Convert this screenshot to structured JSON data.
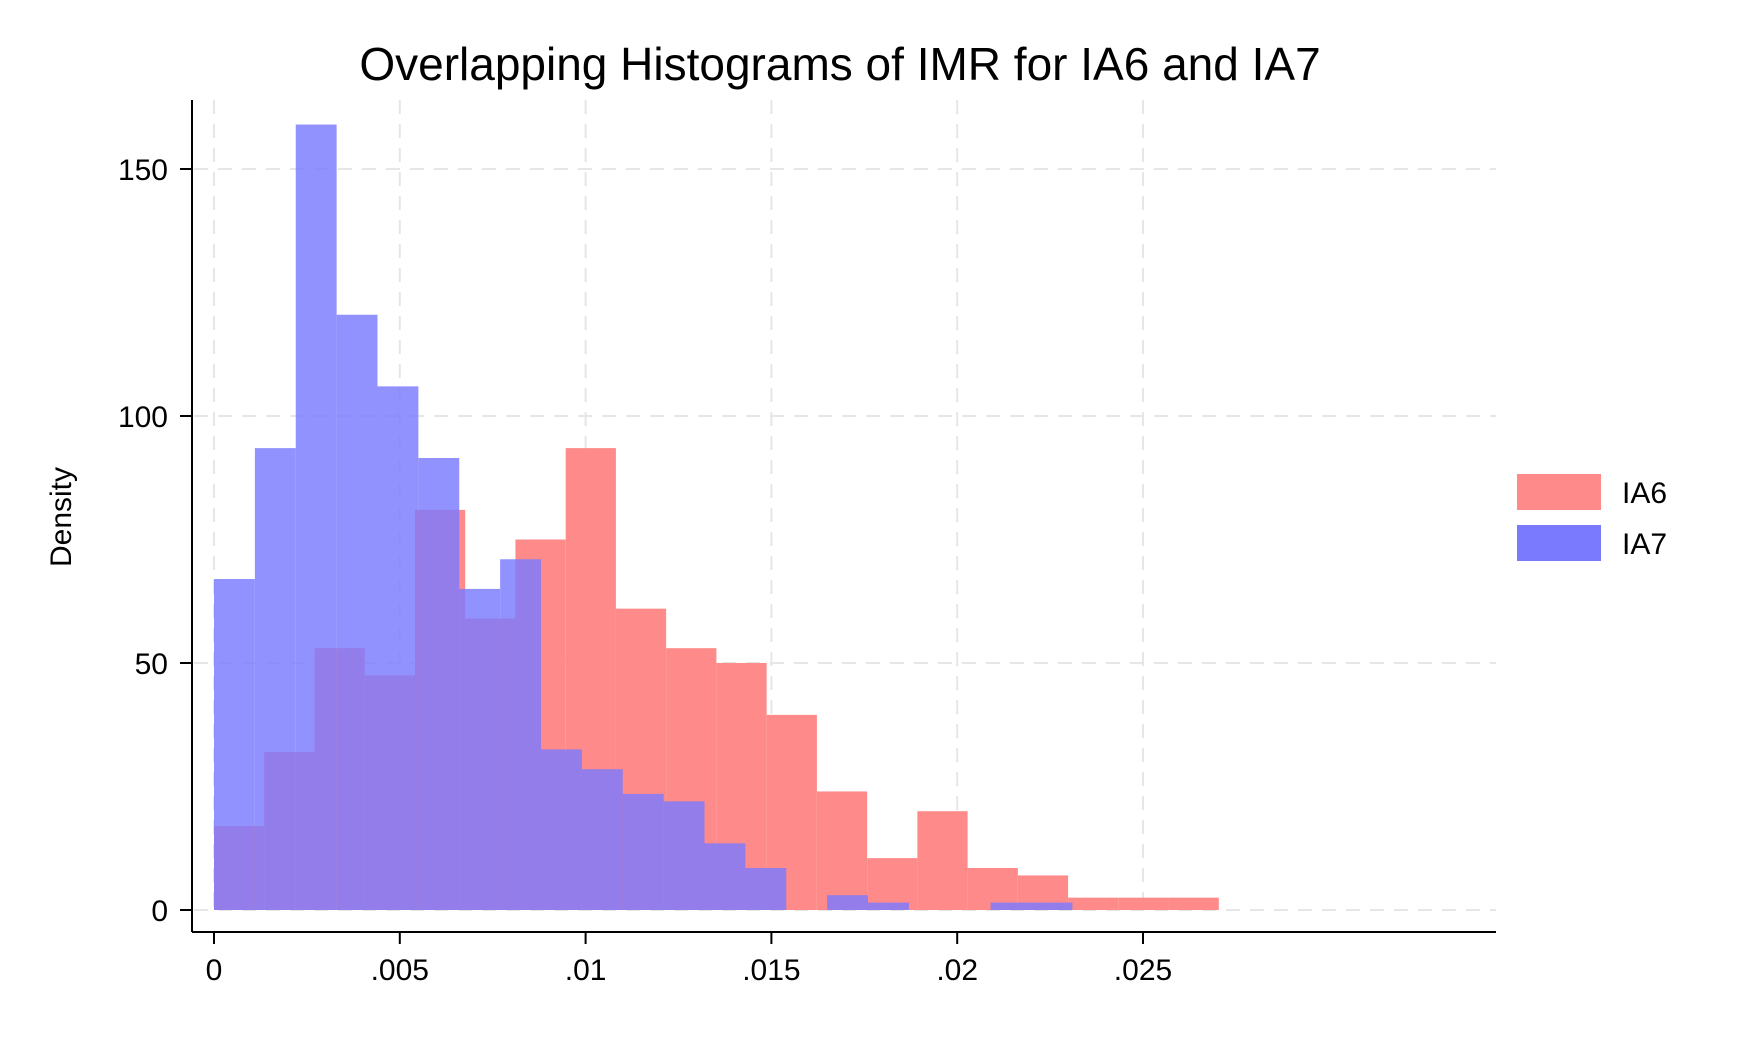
{
  "chart_data": {
    "type": "bar",
    "title": "Overlapping Histograms of IMR for IA6 and IA7",
    "xlabel": "",
    "ylabel": "Density",
    "xlim": [
      0,
      0.028
    ],
    "ylim": [
      0,
      160
    ],
    "x_ticks": [
      {
        "value": 0,
        "label": "0"
      },
      {
        "value": 0.005,
        "label": ".005"
      },
      {
        "value": 0.01,
        "label": ".01"
      },
      {
        "value": 0.015,
        "label": ".015"
      },
      {
        "value": 0.02,
        "label": ".02"
      },
      {
        "value": 0.025,
        "label": ".025"
      }
    ],
    "y_ticks": [
      {
        "value": 0,
        "label": "0"
      },
      {
        "value": 50,
        "label": "50"
      },
      {
        "value": 100,
        "label": "100"
      },
      {
        "value": 150,
        "label": "150"
      }
    ],
    "grid": true,
    "legend_position": "right",
    "series": [
      {
        "name": "IA6",
        "color": "#ff8a8a",
        "bin_start": 0,
        "bin_width": 0.001352,
        "values": [
          17,
          32,
          53,
          47.5,
          81,
          59,
          75,
          93.5,
          61,
          53,
          50,
          39.5,
          24,
          10.5,
          20,
          8.5,
          7,
          2.5,
          2.5,
          2.5
        ]
      },
      {
        "name": "IA7",
        "color": "#7a7aff",
        "bin_start": 0,
        "bin_width": 0.0011,
        "values": [
          67,
          93.5,
          159,
          120.5,
          106,
          91.5,
          65,
          71,
          32.5,
          28.5,
          23.5,
          22,
          13.5,
          8.5,
          0,
          3,
          1.5,
          0,
          0,
          1.5,
          1.5
        ]
      }
    ]
  }
}
